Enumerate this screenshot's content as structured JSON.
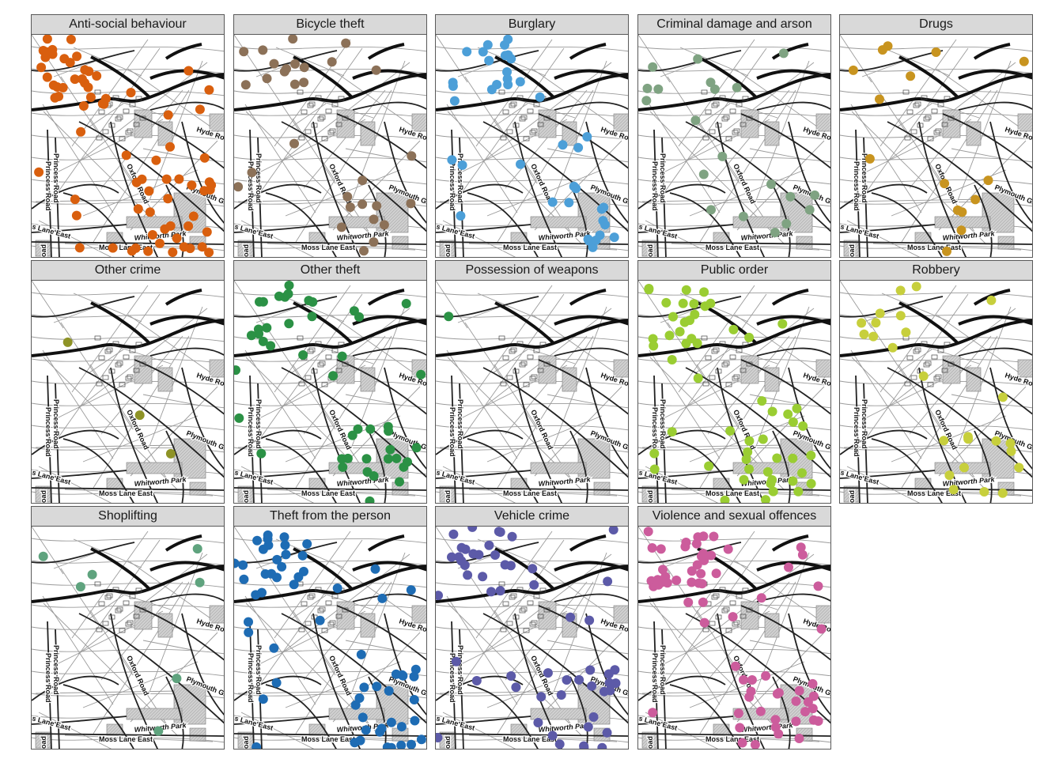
{
  "figure": {
    "map_labels": [
      "Hyde Ro",
      "Princess Road",
      "Oxford Road",
      "Plymouth Gro",
      "Whitworth Park",
      "Moss Lane East",
      "s Lane East",
      "ss Road",
      "Wi"
    ]
  },
  "panels": [
    {
      "title": "Anti-social behaviour",
      "color": "#d95f0e",
      "point_count": 75
    },
    {
      "title": "Bicycle theft",
      "color": "#8c7158",
      "point_count": 30
    },
    {
      "title": "Burglary",
      "color": "#4c9fd8",
      "point_count": 40
    },
    {
      "title": "Criminal damage and arson",
      "color": "#7fa382",
      "point_count": 20
    },
    {
      "title": "Drugs",
      "color": "#c8941f",
      "point_count": 15
    },
    {
      "title": "Other crime",
      "color": "#8e9326",
      "point_count": 3
    },
    {
      "title": "Other theft",
      "color": "#2b9145",
      "point_count": 45
    },
    {
      "title": "Possession of weapons",
      "color": "#2b9145",
      "point_count": 1
    },
    {
      "title": "Public order",
      "color": "#9acd32",
      "point_count": 55
    },
    {
      "title": "Robbery",
      "color": "#c7cf3c",
      "point_count": 25
    },
    {
      "title": "Shoplifting",
      "color": "#5fa37e",
      "point_count": 7
    },
    {
      "title": "Theft from the person",
      "color": "#1e6cb4",
      "point_count": 60
    },
    {
      "title": "Vehicle crime",
      "color": "#5c5aa8",
      "point_count": 55
    },
    {
      "title": "Violence and sexual offences",
      "color": "#cc5c9c",
      "point_count": 70
    }
  ]
}
